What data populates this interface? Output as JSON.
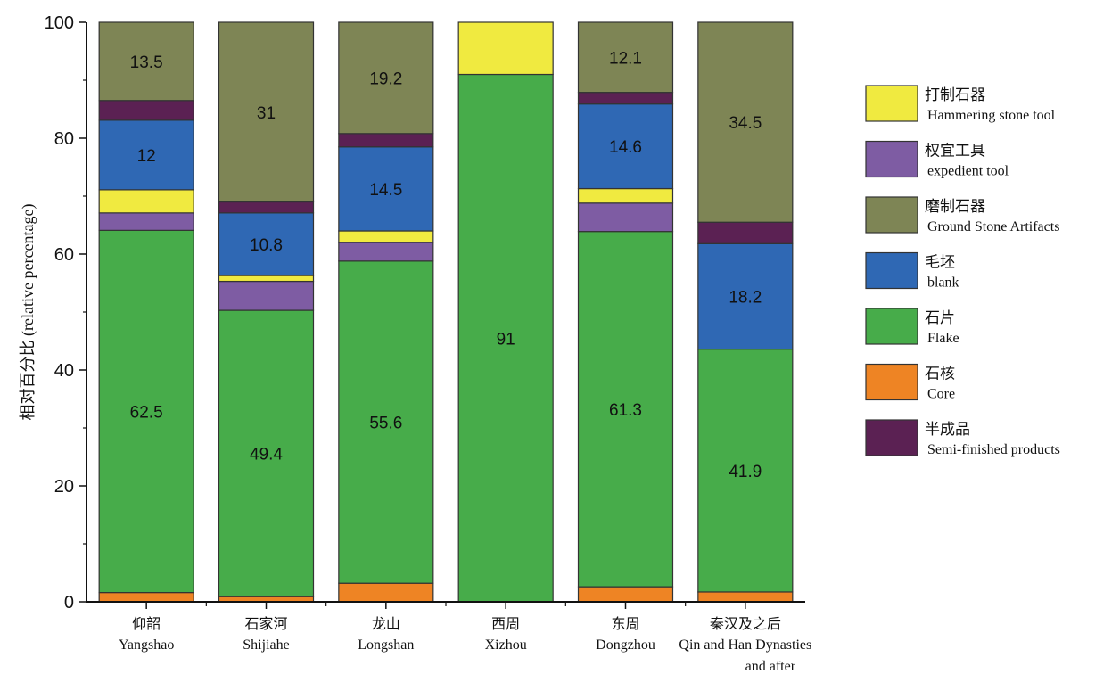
{
  "chart_data": {
    "type": "bar",
    "stacked": true,
    "title": "",
    "xlabel": "",
    "ylabel": "相对百分比 (relative percentage)",
    "ylim": [
      0,
      100
    ],
    "yticks": [
      0,
      20,
      40,
      60,
      80,
      100
    ],
    "grid": false,
    "legend_position": "right",
    "categories": [
      {
        "cn": "仰韶",
        "en": "Yangshao"
      },
      {
        "cn": "石家河",
        "en": "Shijiahe"
      },
      {
        "cn": "龙山",
        "en": "Longshan"
      },
      {
        "cn": "西周",
        "en": "Xizhou"
      },
      {
        "cn": "东周",
        "en": "Dongzhou"
      },
      {
        "cn": "秦汉及之后",
        "en": "Qin and Han Dynasties",
        "en2": "and after"
      }
    ],
    "series": [
      {
        "key": "core",
        "cn": "石核",
        "en": "Core",
        "color": "#EE8424",
        "values": [
          1.6,
          0.9,
          3.2,
          0,
          2.6,
          1.7
        ],
        "labels": [
          null,
          null,
          null,
          null,
          null,
          null
        ]
      },
      {
        "key": "flake",
        "cn": "石片",
        "en": "Flake",
        "color": "#47AC4A",
        "values": [
          62.5,
          49.4,
          55.6,
          91,
          61.3,
          41.9
        ],
        "labels": [
          "62.5",
          "49.4",
          "55.6",
          "91",
          "61.3",
          "41.9"
        ]
      },
      {
        "key": "expedient",
        "cn": "权宜工具",
        "en": "expedient tool",
        "color": "#7E5CA3",
        "values": [
          3.0,
          5.0,
          3.2,
          0,
          4.9,
          0
        ],
        "labels": [
          null,
          null,
          null,
          null,
          null,
          null
        ]
      },
      {
        "key": "hammering",
        "cn": "打制石器",
        "en": "Hammering stone tool",
        "color": "#F0EA40",
        "values": [
          4.0,
          1.0,
          2.0,
          9,
          2.5,
          0
        ],
        "labels": [
          null,
          null,
          null,
          null,
          null,
          null
        ]
      },
      {
        "key": "blank",
        "cn": "毛坯",
        "en": "blank",
        "color": "#2F68B4",
        "values": [
          12,
          10.8,
          14.5,
          0,
          14.6,
          18.2
        ],
        "labels": [
          "12",
          "10.8",
          "14.5",
          null,
          "14.6",
          "18.2"
        ]
      },
      {
        "key": "semi",
        "cn": "半成品",
        "en": "Semi-finished products",
        "color": "#5B2153",
        "values": [
          3.4,
          1.9,
          2.3,
          0,
          2.0,
          3.7
        ],
        "labels": [
          null,
          null,
          null,
          null,
          null,
          null
        ]
      },
      {
        "key": "ground",
        "cn": "磨制石器",
        "en": "Ground Stone Artifacts",
        "color": "#7E8555",
        "values": [
          13.5,
          31,
          19.2,
          0,
          12.1,
          34.5
        ],
        "labels": [
          "13.5",
          "31",
          "19.2",
          null,
          "12.1",
          "34.5"
        ]
      }
    ],
    "legend_order": [
      "hammering",
      "expedient",
      "ground",
      "blank",
      "flake",
      "core",
      "semi"
    ]
  }
}
